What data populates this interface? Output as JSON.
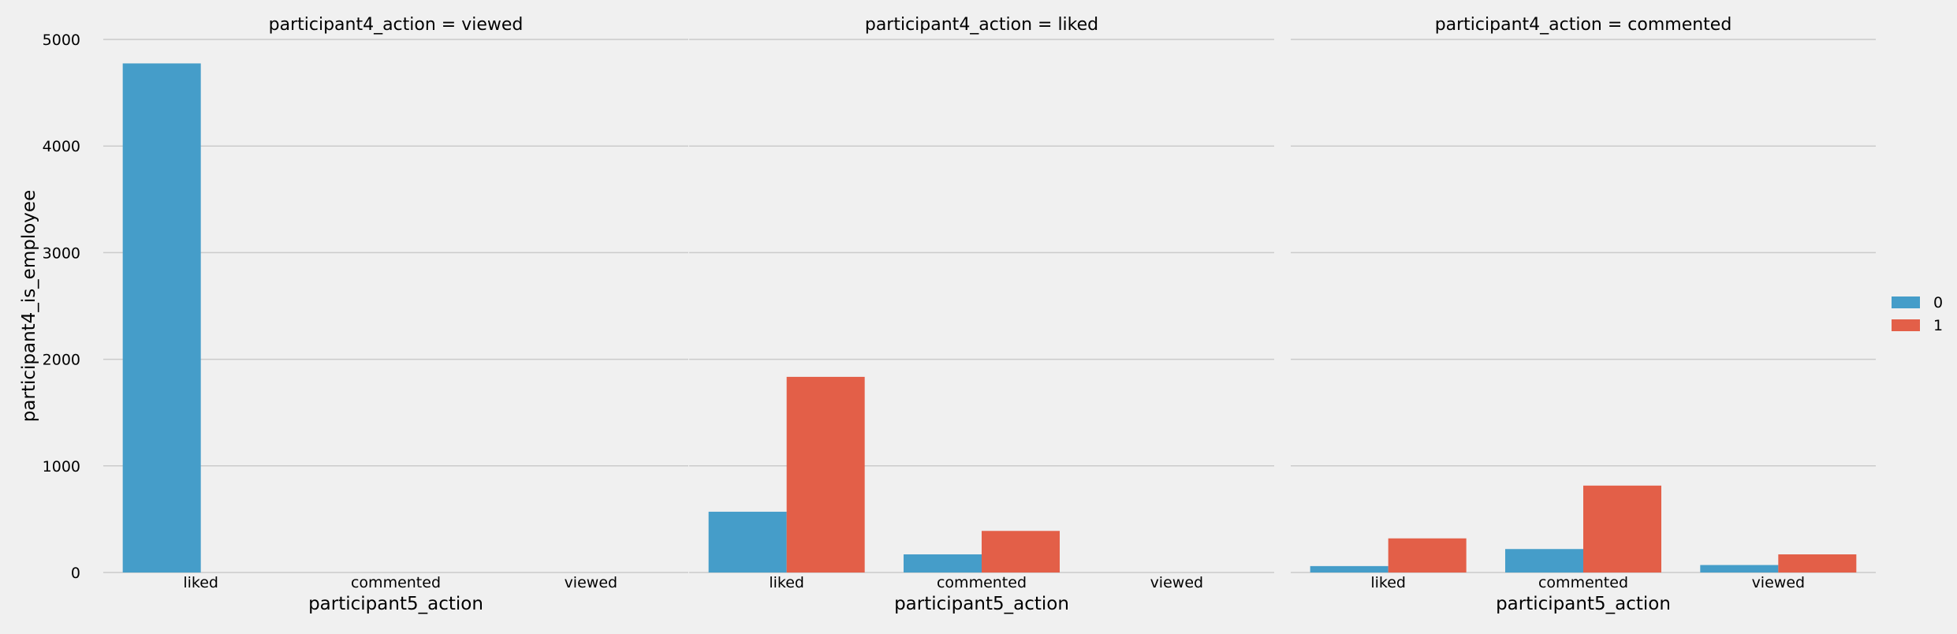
{
  "chart_data": {
    "type": "bar",
    "facet_prefix": "participant4_action = ",
    "xlabel": "participant5_action",
    "ylabel": "participant4_is_employee",
    "ylim": [
      0,
      5000
    ],
    "yticks": [
      0,
      1000,
      2000,
      3000,
      4000,
      5000
    ],
    "categories": [
      "liked",
      "commented",
      "viewed"
    ],
    "grid": "horizontal",
    "legend_position": "right",
    "legend": [
      {
        "label": "0",
        "color": "#459dc9"
      },
      {
        "label": "1",
        "color": "#e35f48"
      }
    ],
    "panels": [
      {
        "title": "participant4_action = viewed",
        "series": [
          {
            "name": "0",
            "values": [
              4775,
              0,
              0
            ]
          },
          {
            "name": "1",
            "values": [
              0,
              0,
              0
            ]
          }
        ]
      },
      {
        "title": "participant4_action = liked",
        "series": [
          {
            "name": "0",
            "values": [
              570,
              170,
              0
            ]
          },
          {
            "name": "1",
            "values": [
              1835,
              390,
              0
            ]
          }
        ]
      },
      {
        "title": "participant4_action = commented",
        "series": [
          {
            "name": "0",
            "values": [
              60,
              220,
              70
            ]
          },
          {
            "name": "1",
            "values": [
              320,
              815,
              170
            ]
          }
        ]
      }
    ]
  }
}
